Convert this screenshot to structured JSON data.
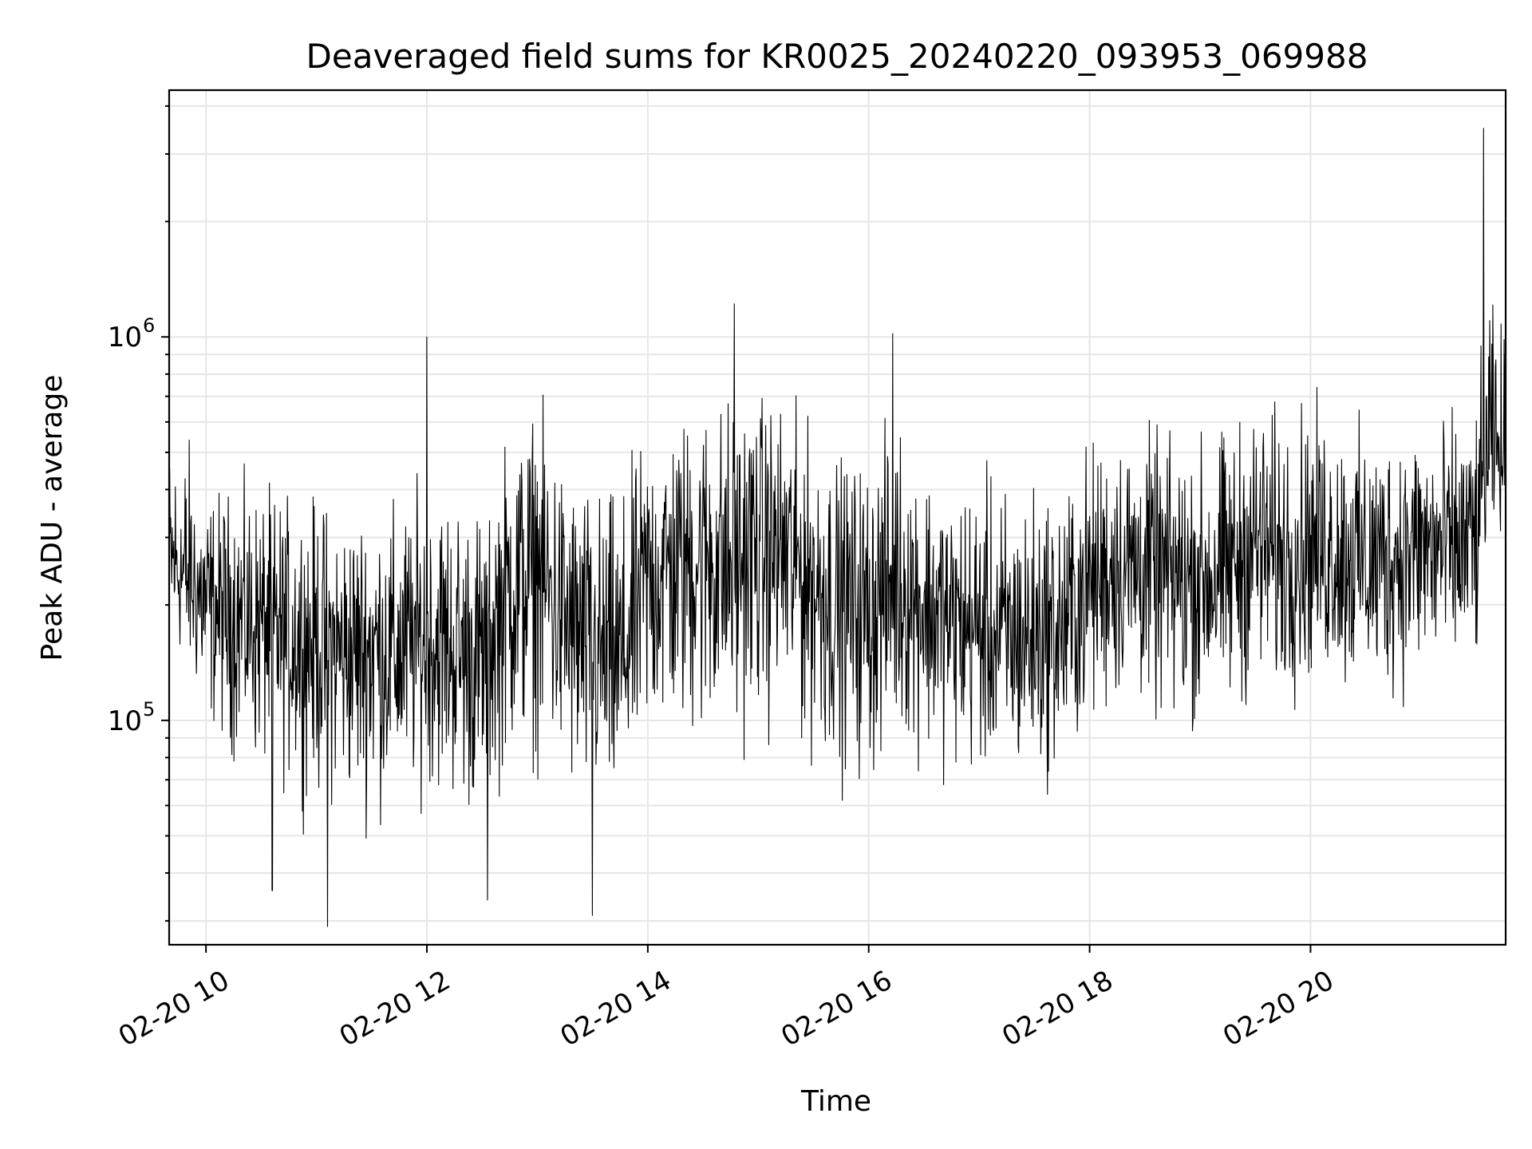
{
  "chart_data": {
    "type": "line",
    "title": "Deaveraged field sums for KR0025_20240220_093953_069988",
    "xlabel": "Time",
    "ylabel": "Peak ADU - average",
    "x_tick_labels": [
      "02-20 10",
      "02-20 12",
      "02-20 14",
      "02-20 16",
      "02-20 18",
      "02-20 20"
    ],
    "x_ticks": [
      "2024-02-20 10:00",
      "2024-02-20 12:00",
      "2024-02-20 14:00",
      "2024-02-20 16:00",
      "2024-02-20 18:00",
      "2024-02-20 20:00"
    ],
    "y_ticks": [
      {
        "value": 100000,
        "base": "10",
        "exp": "5"
      },
      {
        "value": 1000000,
        "base": "10",
        "exp": "6"
      }
    ],
    "yscale": "log",
    "xlim": [
      "2024-02-20 09:40",
      "2024-02-20 21:46"
    ],
    "ylim": [
      26000,
      4400000
    ],
    "grid": true,
    "line_color": "#000000",
    "grid_color": "#e6e6e6",
    "series": [
      {
        "x": [
          "2024-02-20 09:40",
          "2024-02-20 09:50",
          "2024-02-20 10:00",
          "2024-02-20 10:15",
          "2024-02-20 10:30",
          "2024-02-20 10:45",
          "2024-02-20 11:00",
          "2024-02-20 11:15",
          "2024-02-20 11:30",
          "2024-02-20 11:45",
          "2024-02-20 12:00",
          "2024-02-20 12:15",
          "2024-02-20 12:30",
          "2024-02-20 12:45",
          "2024-02-20 13:00",
          "2024-02-20 13:15",
          "2024-02-20 13:30",
          "2024-02-20 13:45",
          "2024-02-20 14:00",
          "2024-02-20 14:15",
          "2024-02-20 14:30",
          "2024-02-20 14:45",
          "2024-02-20 15:00",
          "2024-02-20 15:15",
          "2024-02-20 15:30",
          "2024-02-20 15:45",
          "2024-02-20 16:00",
          "2024-02-20 16:15",
          "2024-02-20 16:30",
          "2024-02-20 16:45",
          "2024-02-20 17:00",
          "2024-02-20 17:15",
          "2024-02-20 17:30",
          "2024-02-20 17:45",
          "2024-02-20 18:00",
          "2024-02-20 18:15",
          "2024-02-20 18:30",
          "2024-02-20 18:45",
          "2024-02-20 19:00",
          "2024-02-20 19:15",
          "2024-02-20 19:30",
          "2024-02-20 19:45",
          "2024-02-20 20:00",
          "2024-02-20 20:15",
          "2024-02-20 20:30",
          "2024-02-20 20:45",
          "2024-02-20 21:00",
          "2024-02-20 21:15",
          "2024-02-20 21:30",
          "2024-02-20 21:37",
          "2024-02-20 21:46"
        ],
        "center": [
          260000,
          230000,
          200000,
          190000,
          180000,
          170000,
          160000,
          150000,
          155000,
          150000,
          160000,
          150000,
          140000,
          220000,
          250000,
          180000,
          150000,
          140000,
          240000,
          260000,
          280000,
          250000,
          300000,
          280000,
          230000,
          210000,
          200000,
          230000,
          200000,
          180000,
          170000,
          160000,
          165000,
          170000,
          230000,
          260000,
          250000,
          240000,
          230000,
          250000,
          290000,
          270000,
          290000,
          280000,
          260000,
          270000,
          280000,
          280000,
          300000,
          500000,
          450000
        ],
        "low": [
          140000,
          110000,
          80000,
          60000,
          55000,
          50000,
          45000,
          45000,
          40000,
          45000,
          50000,
          45000,
          40000,
          55000,
          55000,
          45000,
          38000,
          40000,
          60000,
          60000,
          55000,
          60000,
          65000,
          60000,
          55000,
          50000,
          48000,
          65000,
          60000,
          55000,
          55000,
          52000,
          52000,
          55000,
          70000,
          80000,
          80000,
          65000,
          75000,
          70000,
          90000,
          80000,
          90000,
          90000,
          80000,
          85000,
          95000,
          85000,
          100000,
          250000,
          280000
        ],
        "high": [
          700000,
          750000,
          500000,
          520000,
          520000,
          500000,
          500000,
          480000,
          500000,
          480000,
          600000,
          560000,
          520000,
          800000,
          900000,
          650000,
          550000,
          540000,
          750000,
          800000,
          900000,
          1000000,
          950000,
          900000,
          750000,
          650000,
          650000,
          850000,
          640000,
          560000,
          600000,
          560000,
          560000,
          560000,
          700000,
          750000,
          760000,
          700000,
          720000,
          760000,
          900000,
          850000,
          900000,
          800000,
          750000,
          760000,
          820000,
          800000,
          850000,
          1700000,
          1350000
        ]
      }
    ],
    "notable_spikes": [
      {
        "x": "2024-02-20 12:00",
        "y": 1000000
      },
      {
        "x": "2024-02-20 14:47",
        "y": 1220000
      },
      {
        "x": "2024-02-20 16:13",
        "y": 1020000
      },
      {
        "x": "2024-02-20 21:34",
        "y": 3500000
      }
    ],
    "notable_dips": [
      {
        "x": "2024-02-20 11:06",
        "y": 29000
      },
      {
        "x": "2024-02-20 13:30",
        "y": 31000
      },
      {
        "x": "2024-02-20 10:36",
        "y": 36000
      },
      {
        "x": "2024-02-20 12:33",
        "y": 34000
      }
    ]
  }
}
